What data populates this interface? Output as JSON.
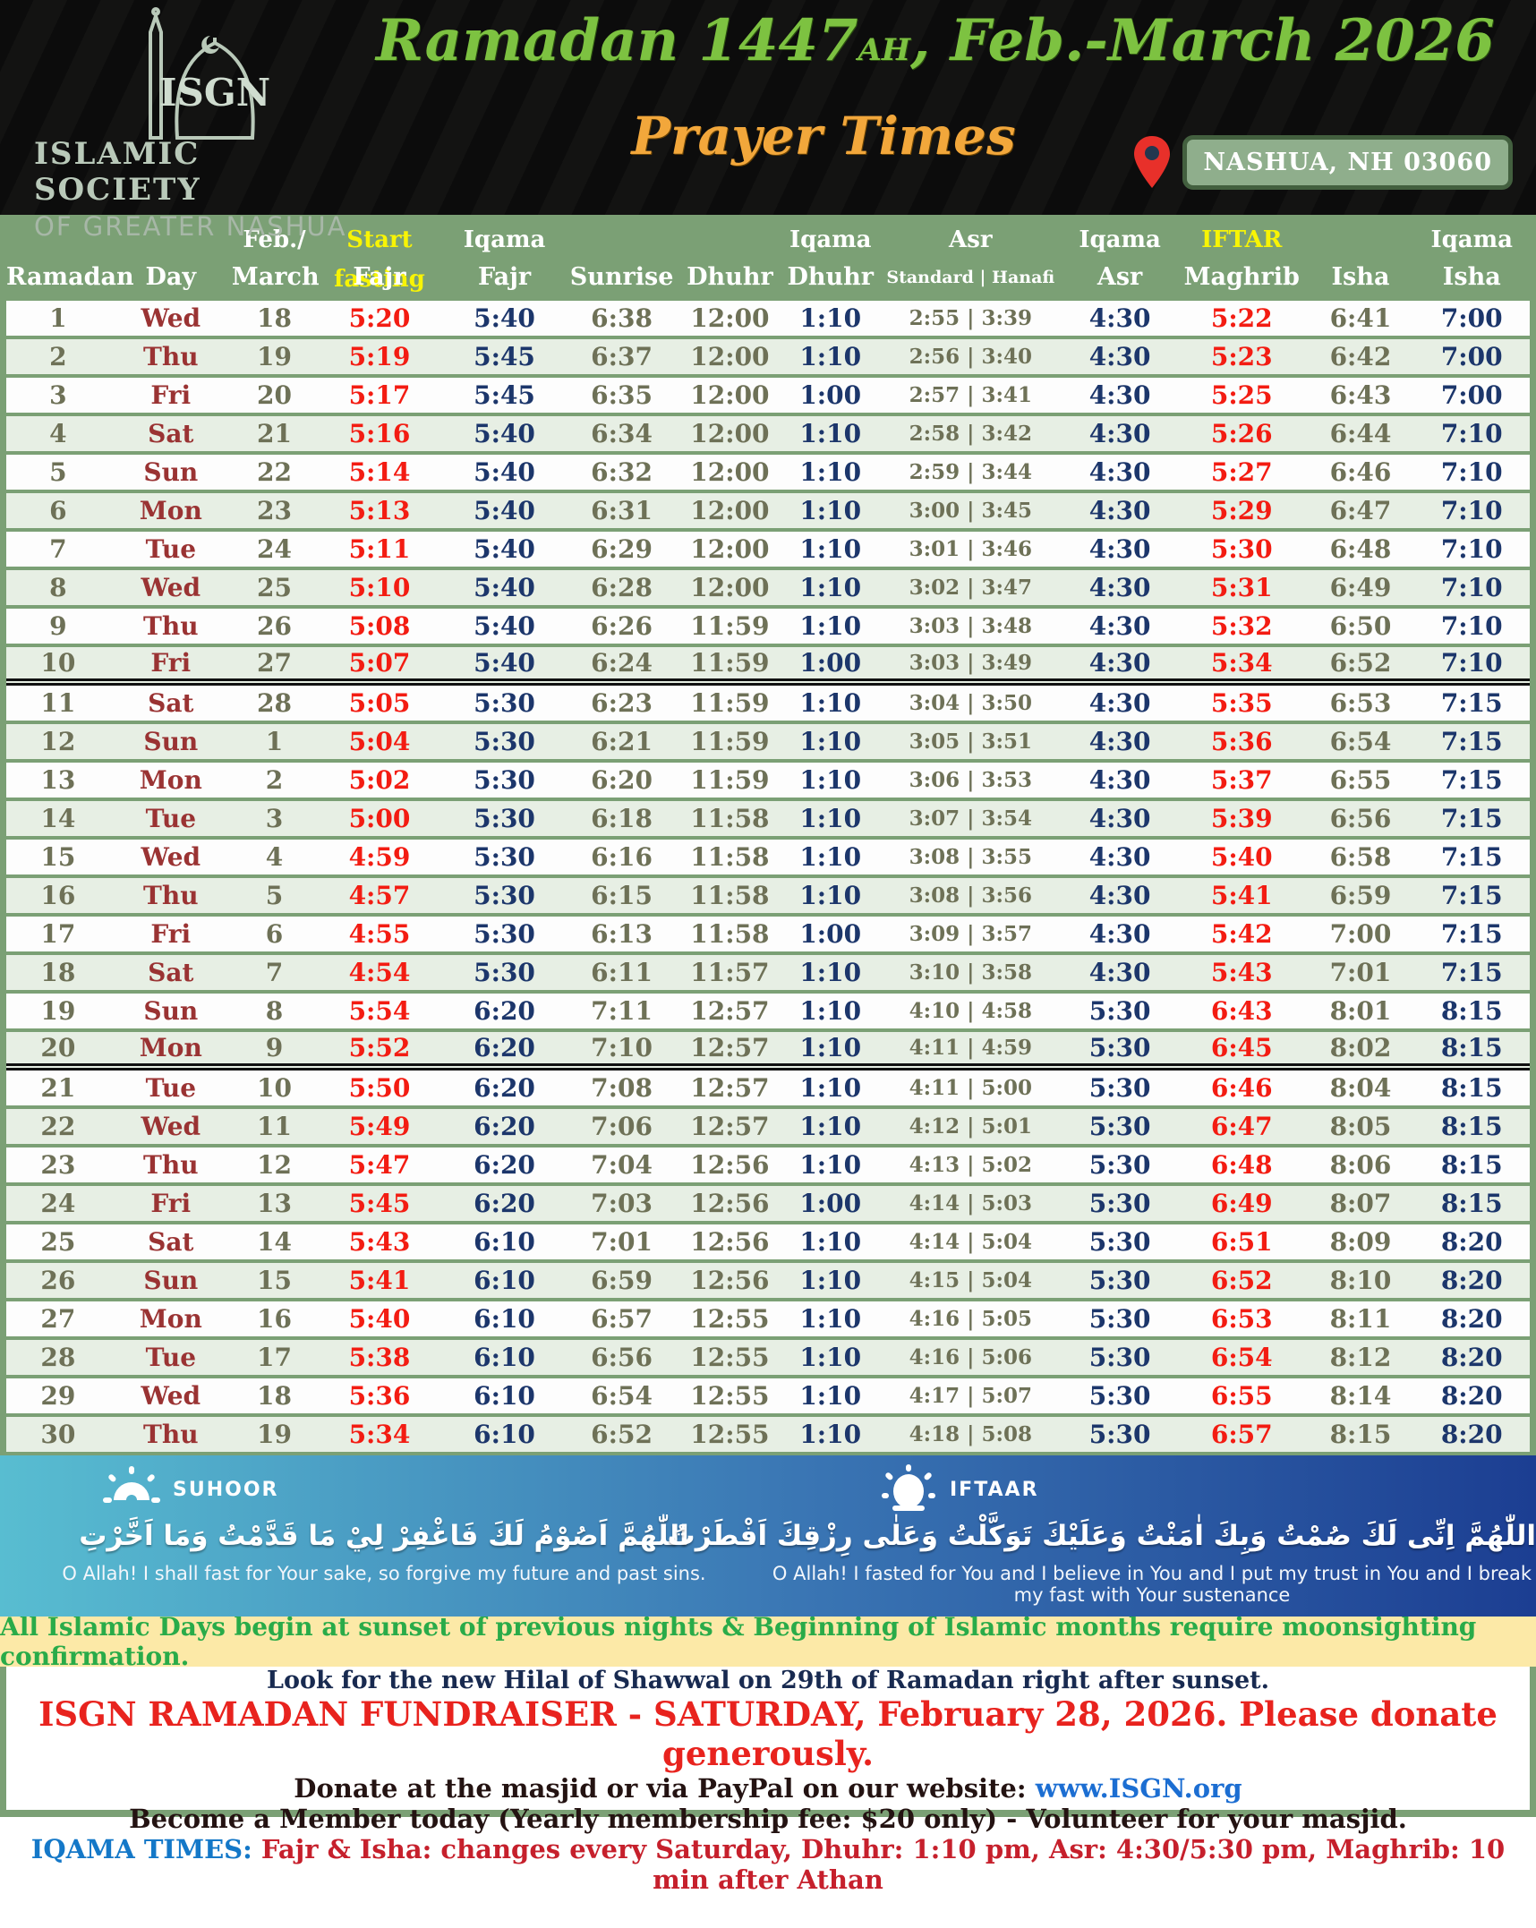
{
  "header": {
    "logo_acronym": "ISGN",
    "logo_line1": "ISLAMIC SOCIETY",
    "logo_line2": "OF GREATER NASHUA",
    "title_main": "Ramadan 1447",
    "title_ah": "AH",
    "title_rest": ", Feb.-March 2026",
    "subtitle": "Prayer Times",
    "location": "NASHUA, NH 03060",
    "accent_green": "#7dc241",
    "accent_orange": "#f2a73b"
  },
  "table": {
    "columns": [
      {
        "top": "",
        "label": "Ramadan"
      },
      {
        "top": "",
        "label": "Day"
      },
      {
        "top": "Feb./",
        "label": "March"
      },
      {
        "top": "Start fasting",
        "label": "Fajr",
        "top_yellow": true
      },
      {
        "top": "Iqama",
        "label": "Fajr"
      },
      {
        "top": "",
        "label": "Sunrise"
      },
      {
        "top": "",
        "label": "Dhuhr"
      },
      {
        "top": "Iqama",
        "label": "Dhuhr"
      },
      {
        "top": "Asr",
        "label": "Standard | Hanafi",
        "small_label": true
      },
      {
        "top": "Iqama",
        "label": "Asr"
      },
      {
        "top": "IFTAR",
        "label": "Maghrib",
        "top_yellow": true
      },
      {
        "top": "",
        "label": "Isha"
      },
      {
        "top": "Iqama",
        "label": "Isha"
      }
    ],
    "rows": [
      [
        "1",
        "Wed",
        "18",
        "5:20",
        "5:40",
        "6:38",
        "12:00",
        "1:10",
        "2:55 | 3:39",
        "4:30",
        "5:22",
        "6:41",
        "7:00"
      ],
      [
        "2",
        "Thu",
        "19",
        "5:19",
        "5:45",
        "6:37",
        "12:00",
        "1:10",
        "2:56 | 3:40",
        "4:30",
        "5:23",
        "6:42",
        "7:00"
      ],
      [
        "3",
        "Fri",
        "20",
        "5:17",
        "5:45",
        "6:35",
        "12:00",
        "1:00",
        "2:57 | 3:41",
        "4:30",
        "5:25",
        "6:43",
        "7:00"
      ],
      [
        "4",
        "Sat",
        "21",
        "5:16",
        "5:40",
        "6:34",
        "12:00",
        "1:10",
        "2:58 | 3:42",
        "4:30",
        "5:26",
        "6:44",
        "7:10"
      ],
      [
        "5",
        "Sun",
        "22",
        "5:14",
        "5:40",
        "6:32",
        "12:00",
        "1:10",
        "2:59 | 3:44",
        "4:30",
        "5:27",
        "6:46",
        "7:10"
      ],
      [
        "6",
        "Mon",
        "23",
        "5:13",
        "5:40",
        "6:31",
        "12:00",
        "1:10",
        "3:00 | 3:45",
        "4:30",
        "5:29",
        "6:47",
        "7:10"
      ],
      [
        "7",
        "Tue",
        "24",
        "5:11",
        "5:40",
        "6:29",
        "12:00",
        "1:10",
        "3:01 | 3:46",
        "4:30",
        "5:30",
        "6:48",
        "7:10"
      ],
      [
        "8",
        "Wed",
        "25",
        "5:10",
        "5:40",
        "6:28",
        "12:00",
        "1:10",
        "3:02 | 3:47",
        "4:30",
        "5:31",
        "6:49",
        "7:10"
      ],
      [
        "9",
        "Thu",
        "26",
        "5:08",
        "5:40",
        "6:26",
        "11:59",
        "1:10",
        "3:03 | 3:48",
        "4:30",
        "5:32",
        "6:50",
        "7:10"
      ],
      [
        "10",
        "Fri",
        "27",
        "5:07",
        "5:40",
        "6:24",
        "11:59",
        "1:00",
        "3:03 | 3:49",
        "4:30",
        "5:34",
        "6:52",
        "7:10"
      ],
      [
        "11",
        "Sat",
        "28",
        "5:05",
        "5:30",
        "6:23",
        "11:59",
        "1:10",
        "3:04 | 3:50",
        "4:30",
        "5:35",
        "6:53",
        "7:15"
      ],
      [
        "12",
        "Sun",
        "1",
        "5:04",
        "5:30",
        "6:21",
        "11:59",
        "1:10",
        "3:05 | 3:51",
        "4:30",
        "5:36",
        "6:54",
        "7:15"
      ],
      [
        "13",
        "Mon",
        "2",
        "5:02",
        "5:30",
        "6:20",
        "11:59",
        "1:10",
        "3:06 | 3:53",
        "4:30",
        "5:37",
        "6:55",
        "7:15"
      ],
      [
        "14",
        "Tue",
        "3",
        "5:00",
        "5:30",
        "6:18",
        "11:58",
        "1:10",
        "3:07 | 3:54",
        "4:30",
        "5:39",
        "6:56",
        "7:15"
      ],
      [
        "15",
        "Wed",
        "4",
        "4:59",
        "5:30",
        "6:16",
        "11:58",
        "1:10",
        "3:08 | 3:55",
        "4:30",
        "5:40",
        "6:58",
        "7:15"
      ],
      [
        "16",
        "Thu",
        "5",
        "4:57",
        "5:30",
        "6:15",
        "11:58",
        "1:10",
        "3:08 | 3:56",
        "4:30",
        "5:41",
        "6:59",
        "7:15"
      ],
      [
        "17",
        "Fri",
        "6",
        "4:55",
        "5:30",
        "6:13",
        "11:58",
        "1:00",
        "3:09 | 3:57",
        "4:30",
        "5:42",
        "7:00",
        "7:15"
      ],
      [
        "18",
        "Sat",
        "7",
        "4:54",
        "5:30",
        "6:11",
        "11:57",
        "1:10",
        "3:10 | 3:58",
        "4:30",
        "5:43",
        "7:01",
        "7:15"
      ],
      [
        "19",
        "Sun",
        "8",
        "5:54",
        "6:20",
        "7:11",
        "12:57",
        "1:10",
        "4:10 | 4:58",
        "5:30",
        "6:43",
        "8:01",
        "8:15"
      ],
      [
        "20",
        "Mon",
        "9",
        "5:52",
        "6:20",
        "7:10",
        "12:57",
        "1:10",
        "4:11 | 4:59",
        "5:30",
        "6:45",
        "8:02",
        "8:15"
      ],
      [
        "21",
        "Tue",
        "10",
        "5:50",
        "6:20",
        "7:08",
        "12:57",
        "1:10",
        "4:11 | 5:00",
        "5:30",
        "6:46",
        "8:04",
        "8:15"
      ],
      [
        "22",
        "Wed",
        "11",
        "5:49",
        "6:20",
        "7:06",
        "12:57",
        "1:10",
        "4:12 | 5:01",
        "5:30",
        "6:47",
        "8:05",
        "8:15"
      ],
      [
        "23",
        "Thu",
        "12",
        "5:47",
        "6:20",
        "7:04",
        "12:56",
        "1:10",
        "4:13 | 5:02",
        "5:30",
        "6:48",
        "8:06",
        "8:15"
      ],
      [
        "24",
        "Fri",
        "13",
        "5:45",
        "6:20",
        "7:03",
        "12:56",
        "1:00",
        "4:14 | 5:03",
        "5:30",
        "6:49",
        "8:07",
        "8:15"
      ],
      [
        "25",
        "Sat",
        "14",
        "5:43",
        "6:10",
        "7:01",
        "12:56",
        "1:10",
        "4:14 | 5:04",
        "5:30",
        "6:51",
        "8:09",
        "8:20"
      ],
      [
        "26",
        "Sun",
        "15",
        "5:41",
        "6:10",
        "6:59",
        "12:56",
        "1:10",
        "4:15 | 5:04",
        "5:30",
        "6:52",
        "8:10",
        "8:20"
      ],
      [
        "27",
        "Mon",
        "16",
        "5:40",
        "6:10",
        "6:57",
        "12:55",
        "1:10",
        "4:16 | 5:05",
        "5:30",
        "6:53",
        "8:11",
        "8:20"
      ],
      [
        "28",
        "Tue",
        "17",
        "5:38",
        "6:10",
        "6:56",
        "12:55",
        "1:10",
        "4:16 | 5:06",
        "5:30",
        "6:54",
        "8:12",
        "8:20"
      ],
      [
        "29",
        "Wed",
        "18",
        "5:36",
        "6:10",
        "6:54",
        "12:55",
        "1:10",
        "4:17 | 5:07",
        "5:30",
        "6:55",
        "8:14",
        "8:20"
      ],
      [
        "30",
        "Thu",
        "19",
        "5:34",
        "6:10",
        "6:52",
        "12:55",
        "1:10",
        "4:18 | 5:08",
        "5:30",
        "6:57",
        "8:15",
        "8:20"
      ]
    ]
  },
  "duas": {
    "suhoor_label": "SUHOOR",
    "suhoor_arabic": "اللّٰهُمَّ اَصُوْمُ لَكَ فَاغْفِرْ لِيْ مَا قَدَّمْتُ وَمَا اَخَّرْتِ",
    "suhoor_english": "O Allah! I shall fast for Your sake, so forgive my future and past sins.",
    "iftaar_label": "IFTAAR",
    "iftaar_arabic": "اللّٰهُمَّ اِنِّى لَكَ صُمْتُ وَبِكَ اٰمَنْتُ وَعَلَيْكَ تَوَكَّلْتُ وَعَلٰى رِزْقِكَ اَفْطَرْتُ",
    "iftaar_english": "O Allah! I fasted for You and I believe in You and I put my trust in You and I break my fast with Your sustenance"
  },
  "footer": {
    "banner": "All Islamic Days begin at sunset of previous nights & Beginning of Islamic months require moonsighting confirmation.",
    "hilal": "Look for the new Hilal of Shawwal on 29th of Ramadan right after sunset.",
    "fundraiser": "ISGN RAMADAN FUNDRAISER - SATURDAY, February 28, 2026. Please donate generously.",
    "donate_prefix": "Donate at the masjid or via PayPal on our website: ",
    "donate_link": "www.ISGN.org",
    "member": "Become a Member today (Yearly membership fee: $20 only) - Volunteer for your masjid.",
    "iqama_label": "IQAMA TIMES:",
    "iqama_text": " Fajr & Isha: changes every Saturday, Dhuhr: 1:10 pm, Asr: 4:30/5:30 pm, Maghrib: 10 min after Athan"
  }
}
